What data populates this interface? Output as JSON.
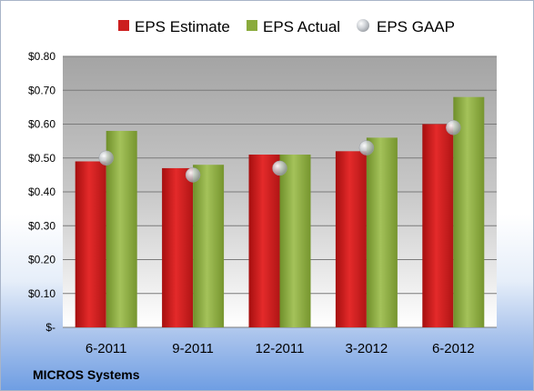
{
  "chart_data": {
    "type": "bar",
    "categories": [
      "6-2011",
      "9-2011",
      "12-2011",
      "3-2012",
      "6-2012"
    ],
    "series": [
      {
        "name": "EPS Estimate",
        "kind": "bar",
        "color": "#cc1f1f",
        "values": [
          0.49,
          0.47,
          0.51,
          0.52,
          0.6
        ]
      },
      {
        "name": "EPS Actual",
        "kind": "bar",
        "color": "#8aab3c",
        "values": [
          0.58,
          0.48,
          0.51,
          0.56,
          0.68
        ]
      },
      {
        "name": "EPS GAAP",
        "kind": "marker",
        "color": "#b8bcc0",
        "values": [
          0.5,
          0.45,
          0.47,
          0.53,
          0.59
        ]
      }
    ],
    "ylim": [
      0,
      0.8
    ],
    "yticks": [
      0,
      0.1,
      0.2,
      0.3,
      0.4,
      0.5,
      0.6,
      0.7,
      0.8
    ],
    "ytick_labels": [
      "$-",
      "$0.10",
      "$0.20",
      "$0.30",
      "$0.40",
      "$0.50",
      "$0.60",
      "$0.70",
      "$0.80"
    ],
    "grid": true,
    "legend_position": "top",
    "xlabel": "",
    "ylabel": "",
    "title": ""
  },
  "footer": {
    "company": "MICROS Systems"
  }
}
